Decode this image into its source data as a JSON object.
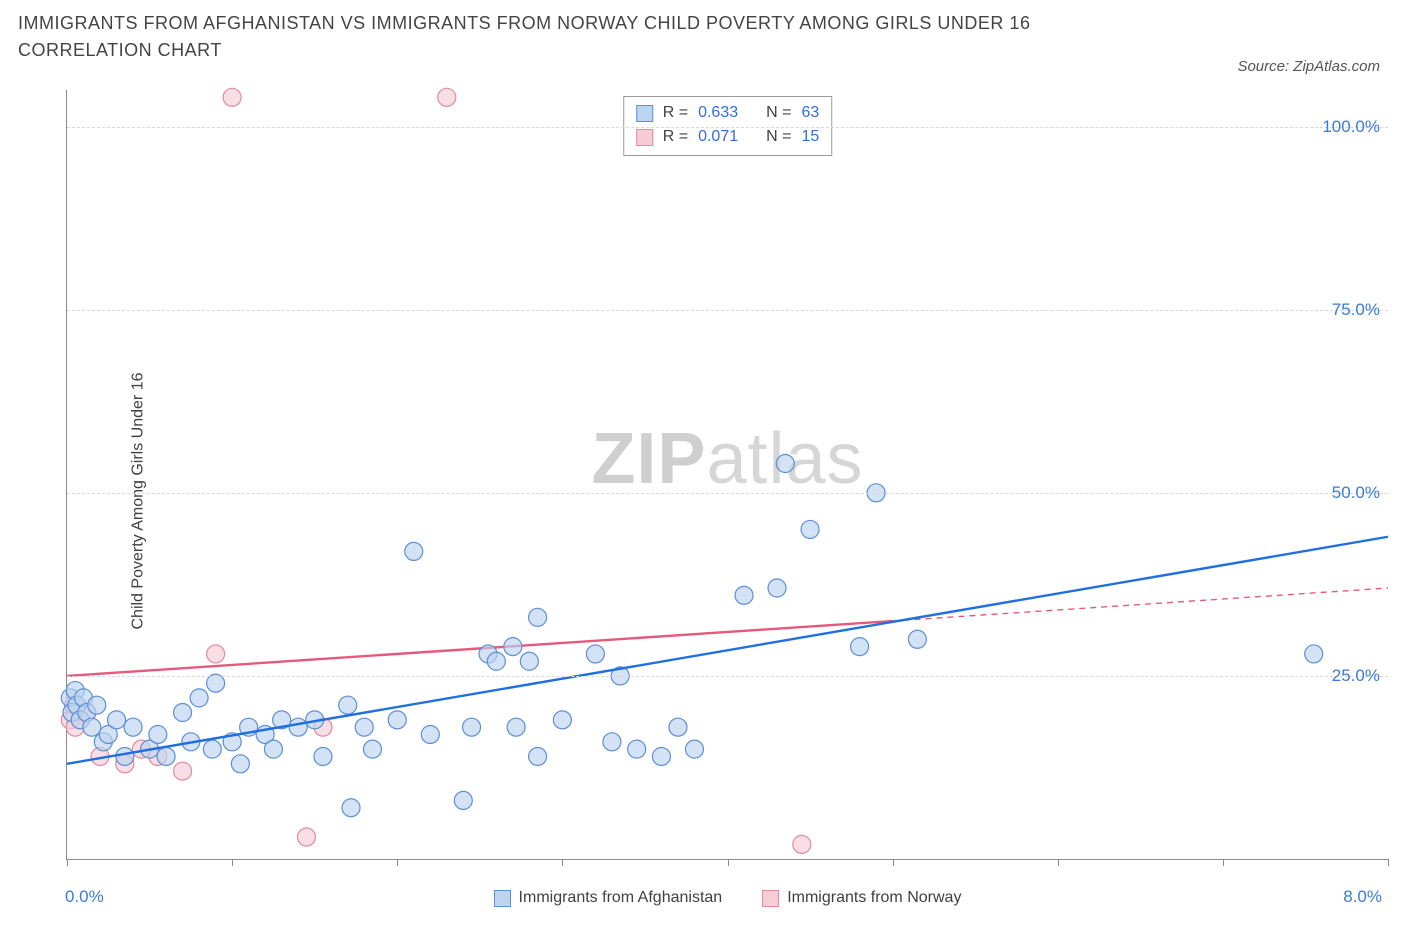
{
  "title": "IMMIGRANTS FROM AFGHANISTAN VS IMMIGRANTS FROM NORWAY CHILD POVERTY AMONG GIRLS UNDER 16 CORRELATION CHART",
  "source_label": "Source: ZipAtlas.com",
  "watermark": {
    "bold": "ZIP",
    "rest": "atlas"
  },
  "ylabel": "Child Poverty Among Girls Under 16",
  "chart": {
    "type": "scatter",
    "background_color": "#ffffff",
    "grid_color": "#d8d8d8",
    "axis_color": "#8a8a8a",
    "xlim": [
      0,
      8
    ],
    "ylim": [
      0,
      105
    ],
    "x_min_label": "0.0%",
    "x_max_label": "8.0%",
    "x_ticks": [
      0,
      1,
      2,
      3,
      4,
      5,
      6,
      7,
      8
    ],
    "y_ticks": [
      25,
      50,
      75,
      100
    ],
    "y_tick_labels": [
      "25.0%",
      "50.0%",
      "75.0%",
      "100.0%"
    ],
    "y_tick_color": "#3a7bd5",
    "x_label_color": "#3a7bd5",
    "marker_radius": 9,
    "marker_stroke_width": 1.2,
    "trend_line_width": 2.4,
    "series": {
      "afghanistan": {
        "label": "Immigrants from Afghanistan",
        "fill": "#bcd4ef",
        "stroke": "#5c8fd6",
        "line_color": "#1f6fe0",
        "trend": {
          "x1": 0,
          "y1": 13,
          "x2": 8,
          "y2": 44
        },
        "points": [
          [
            0.02,
            22
          ],
          [
            0.03,
            20
          ],
          [
            0.05,
            23
          ],
          [
            0.06,
            21
          ],
          [
            0.08,
            19
          ],
          [
            0.1,
            22
          ],
          [
            0.12,
            20
          ],
          [
            0.15,
            18
          ],
          [
            0.18,
            21
          ],
          [
            0.22,
            16
          ],
          [
            0.25,
            17
          ],
          [
            0.3,
            19
          ],
          [
            0.35,
            14
          ],
          [
            0.4,
            18
          ],
          [
            0.5,
            15
          ],
          [
            0.55,
            17
          ],
          [
            0.6,
            14
          ],
          [
            0.7,
            20
          ],
          [
            0.75,
            16
          ],
          [
            0.8,
            22
          ],
          [
            0.88,
            15
          ],
          [
            0.9,
            24
          ],
          [
            1.0,
            16
          ],
          [
            1.05,
            13
          ],
          [
            1.1,
            18
          ],
          [
            1.2,
            17
          ],
          [
            1.25,
            15
          ],
          [
            1.3,
            19
          ],
          [
            1.4,
            18
          ],
          [
            1.5,
            19
          ],
          [
            1.55,
            14
          ],
          [
            1.7,
            21
          ],
          [
            1.72,
            7
          ],
          [
            1.8,
            18
          ],
          [
            1.85,
            15
          ],
          [
            2.0,
            19
          ],
          [
            2.1,
            42
          ],
          [
            2.2,
            17
          ],
          [
            2.4,
            8
          ],
          [
            2.45,
            18
          ],
          [
            2.55,
            28
          ],
          [
            2.6,
            27
          ],
          [
            2.7,
            29
          ],
          [
            2.72,
            18
          ],
          [
            2.8,
            27
          ],
          [
            2.85,
            33
          ],
          [
            2.85,
            14
          ],
          [
            3.0,
            19
          ],
          [
            3.2,
            28
          ],
          [
            3.3,
            16
          ],
          [
            3.35,
            25
          ],
          [
            3.45,
            15
          ],
          [
            3.6,
            14
          ],
          [
            3.7,
            18
          ],
          [
            3.8,
            15
          ],
          [
            4.1,
            36
          ],
          [
            4.3,
            37
          ],
          [
            4.35,
            54
          ],
          [
            4.5,
            45
          ],
          [
            4.8,
            29
          ],
          [
            4.9,
            50
          ],
          [
            5.15,
            30
          ],
          [
            7.55,
            28
          ]
        ]
      },
      "norway": {
        "label": "Immigrants from Norway",
        "fill": "#f6cdd7",
        "stroke": "#e28aa0",
        "line_color": "#e55a7c",
        "trend": {
          "x1": 0,
          "y1": 25,
          "x2": 5.0,
          "y2": 32.5
        },
        "trend_dash": {
          "x1": 5.0,
          "y1": 32.5,
          "x2": 8,
          "y2": 37
        },
        "points": [
          [
            0.02,
            19
          ],
          [
            0.04,
            21
          ],
          [
            0.05,
            18
          ],
          [
            0.12,
            20
          ],
          [
            0.2,
            14
          ],
          [
            0.35,
            13
          ],
          [
            0.45,
            15
          ],
          [
            0.55,
            14
          ],
          [
            0.7,
            12
          ],
          [
            0.9,
            28
          ],
          [
            1.0,
            104
          ],
          [
            1.45,
            3
          ],
          [
            1.55,
            18
          ],
          [
            2.3,
            104
          ],
          [
            4.45,
            2
          ]
        ]
      }
    }
  },
  "stats_box": {
    "rows": [
      {
        "series": "afghanistan",
        "R": "0.633",
        "N": "63"
      },
      {
        "series": "norway",
        "R": "0.071",
        "N": "15"
      }
    ],
    "label_R": "R =",
    "label_N": "N ="
  }
}
